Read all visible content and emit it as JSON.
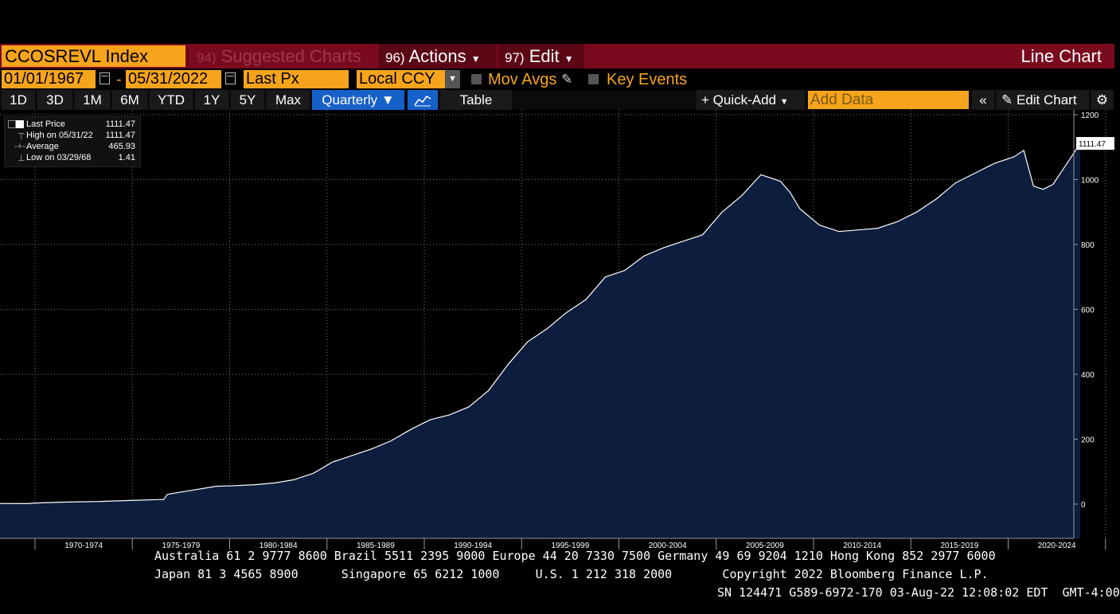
{
  "header": {
    "ticker": "CCOSREVL Index",
    "suggested_num": "94)",
    "suggested_label": "Suggested Charts",
    "actions_num": "96)",
    "actions_label": "Actions",
    "edit_num": "97)",
    "edit_label": "Edit",
    "chart_type": "Line Chart"
  },
  "dates": {
    "start": "01/01/1967",
    "end": "05/31/2022",
    "field": "Last Px",
    "currency": "Local CCY",
    "mov_avgs": "Mov Avgs",
    "key_events": "Key Events"
  },
  "ranges": {
    "buttons": [
      "1D",
      "3D",
      "1M",
      "6M",
      "YTD",
      "1Y",
      "5Y",
      "Max"
    ],
    "periodicity": "Quarterly ▼",
    "table": "Table",
    "quick_add": "Quick-Add",
    "add_data_placeholder": "Add Data",
    "edit_chart": "Edit Chart"
  },
  "legend": {
    "rows": [
      {
        "label": "Last Price",
        "value": "1111.47"
      },
      {
        "label": "High on 05/31/22",
        "value": "1111.47"
      },
      {
        "label": "Average",
        "value": "465.93"
      },
      {
        "label": "Low on 03/29/68",
        "value": "1.41"
      }
    ]
  },
  "footer": {
    "line1": "Australia 61 2 9777 8600 Brazil 5511 2395 9000 Europe 44 20 7330 7500 Germany 49 69 9204 1210 Hong Kong 852 2977 6000",
    "line2": "Japan 81 3 4565 8900      Singapore 65 6212 1000     U.S. 1 212 318 2000       Copyright 2022 Bloomberg Finance L.P.",
    "line3": "SN 124471 G589-6972-170 03-Aug-22 12:08:02 EDT  GMT-4:00"
  },
  "colors": {
    "accent": "#f7a41d",
    "header": "#7a0a1e",
    "area": "#0c1d3d",
    "line": "#ffffff",
    "selected": "#1660c9"
  },
  "chart_data": {
    "type": "area",
    "title": "",
    "xlabel": "",
    "ylabel": "",
    "ylim": [
      -100,
      1200
    ],
    "yticks": [
      0,
      200,
      400,
      600,
      800,
      1000,
      1200
    ],
    "xlim": [
      1966.5,
      2025.5
    ],
    "xtick_labels": [
      "1970-1974",
      "1975-1979",
      "1980-1984",
      "1985-1989",
      "1990-1994",
      "1995-1999",
      "2000-2004",
      "2005-2009",
      "2010-2014",
      "2015-2019",
      "2020-2024"
    ],
    "last_value_label": "1111.47",
    "grid": true,
    "legend_position": "top-left",
    "series": [
      {
        "name": "Last Price",
        "x": [
          1967,
          1968.2,
          1969,
          1970,
          1971,
          1972,
          1973,
          1974,
          1975,
          1975.3,
          1975.5,
          1976,
          1977,
          1978,
          1979,
          1980,
          1981,
          1982,
          1983,
          1984,
          1985,
          1986,
          1987,
          1988,
          1989,
          1990,
          1991,
          1992,
          1993,
          1994,
          1995,
          1996,
          1997,
          1998,
          1999,
          2000,
          2001,
          2002,
          2003,
          2004,
          2005,
          2006,
          2007,
          2007.5,
          2008,
          2009,
          2010,
          2011,
          2012,
          2013,
          2014,
          2015,
          2016,
          2017,
          2018,
          2019,
          2019.5,
          2020,
          2020.5,
          2021,
          2021.5,
          2022.4
        ],
        "y": [
          2,
          1.41,
          4,
          6,
          7,
          8,
          10,
          12,
          14,
          14,
          30,
          35,
          45,
          55,
          57,
          60,
          65,
          75,
          95,
          130,
          150,
          170,
          195,
          230,
          260,
          275,
          300,
          350,
          430,
          500,
          540,
          590,
          630,
          700,
          720,
          765,
          790,
          810,
          830,
          900,
          950,
          1015,
          995,
          960,
          910,
          860,
          840,
          845,
          850,
          870,
          900,
          940,
          990,
          1020,
          1050,
          1070,
          1090,
          980,
          970,
          985,
          1030,
          1111.47
        ]
      }
    ]
  }
}
